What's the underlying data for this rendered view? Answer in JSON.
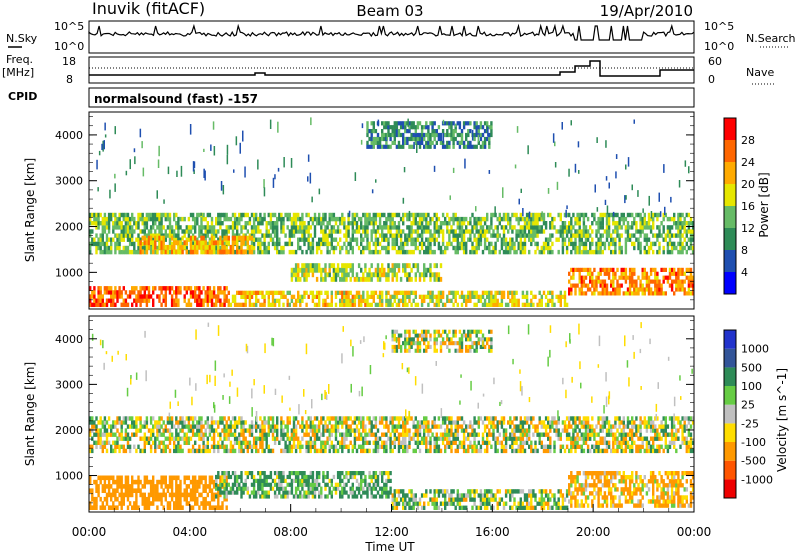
{
  "header": {
    "station": "Inuvik (fitACF)",
    "beam": "Beam 03",
    "date": "19/Apr/2010"
  },
  "sky_panel": {
    "left_label": "N.Sky",
    "right_label": "N.Search",
    "left_ticks": [
      "10^5",
      "10^0"
    ],
    "right_ticks": [
      "10^5",
      "10^0"
    ]
  },
  "freq_panel": {
    "left_label_1": "Freq.",
    "left_label_2": "[MHz]",
    "left_ticks": [
      "18",
      "8"
    ],
    "right_label": "Nave",
    "right_ticks": [
      "60",
      "0"
    ]
  },
  "cpid": {
    "label": "CPID",
    "value": "normalsound (fast) -157"
  },
  "colors": {
    "power": [
      "#0000ff",
      "#1f4fb0",
      "#2e8b57",
      "#66bb66",
      "#e6e600",
      "#ffaa00",
      "#ff6600",
      "#ff0000"
    ],
    "velocity": [
      "#2233cc",
      "#335599",
      "#2e8b57",
      "#66cc44",
      "#c0c0c0",
      "#ffdd00",
      "#ff9900",
      "#ff5500",
      "#ee0000"
    ]
  },
  "chart_data": [
    {
      "type": "heatmap",
      "name": "power",
      "ylabel": "Slant Range [km]",
      "ylim": [
        200,
        4500
      ],
      "yticks": [
        1000,
        2000,
        3000,
        4000
      ],
      "xlim": [
        0,
        24
      ],
      "colorbar": {
        "label": "Power [dB]",
        "ticks": [
          "28",
          "24",
          "20",
          "16",
          "12",
          "8",
          "4"
        ],
        "range": [
          0,
          32
        ]
      },
      "echo_bands": [
        {
          "t0": 0.0,
          "t1": 5.5,
          "r0": 250,
          "r1": 700,
          "value": 26
        },
        {
          "t0": 5.5,
          "t1": 11.0,
          "r0": 250,
          "r1": 600,
          "value": 20
        },
        {
          "t0": 11.0,
          "t1": 19.0,
          "r0": 250,
          "r1": 600,
          "value": 18
        },
        {
          "t0": 19.0,
          "t1": 24.0,
          "r0": 500,
          "r1": 1100,
          "value": 24
        },
        {
          "t0": 0.0,
          "t1": 24.0,
          "r0": 1400,
          "r1": 2300,
          "value": 14
        },
        {
          "t0": 2.0,
          "t1": 6.5,
          "r0": 1400,
          "r1": 1800,
          "value": 22
        },
        {
          "t0": 8.0,
          "t1": 14.0,
          "r0": 800,
          "r1": 1200,
          "value": 16
        },
        {
          "t0": 11.0,
          "t1": 16.0,
          "r0": 3700,
          "r1": 4300,
          "value": 10
        }
      ]
    },
    {
      "type": "heatmap",
      "name": "velocity",
      "ylabel": "Slant Range [km]",
      "ylim": [
        200,
        4500
      ],
      "yticks": [
        1000,
        2000,
        3000,
        4000
      ],
      "xlim": [
        0,
        24
      ],
      "xlabel": "Time UT",
      "xticks": [
        "00:00",
        "04:00",
        "08:00",
        "12:00",
        "16:00",
        "20:00",
        "00:00"
      ],
      "colorbar": {
        "label": "Velocity [m s^-1]",
        "ticks": [
          "1000",
          "500",
          "100",
          "25",
          "-25",
          "-100",
          "-500",
          "-1000"
        ],
        "range": [
          -1000,
          1000
        ]
      },
      "echo_bands": [
        {
          "t0": 0.0,
          "t1": 5.5,
          "r0": 250,
          "r1": 1000,
          "value": -300
        },
        {
          "t0": 5.0,
          "t1": 12.0,
          "r0": 500,
          "r1": 1100,
          "value": 150
        },
        {
          "t0": 0.0,
          "t1": 24.0,
          "r0": 1500,
          "r1": 2300,
          "value": 0
        },
        {
          "t0": 12.0,
          "t1": 19.0,
          "r0": 250,
          "r1": 700,
          "value": 60
        },
        {
          "t0": 19.0,
          "t1": 24.0,
          "r0": 300,
          "r1": 1100,
          "value": -150
        },
        {
          "t0": 12.0,
          "t1": 16.0,
          "r0": 3700,
          "r1": 4200,
          "value": 0
        }
      ]
    }
  ]
}
